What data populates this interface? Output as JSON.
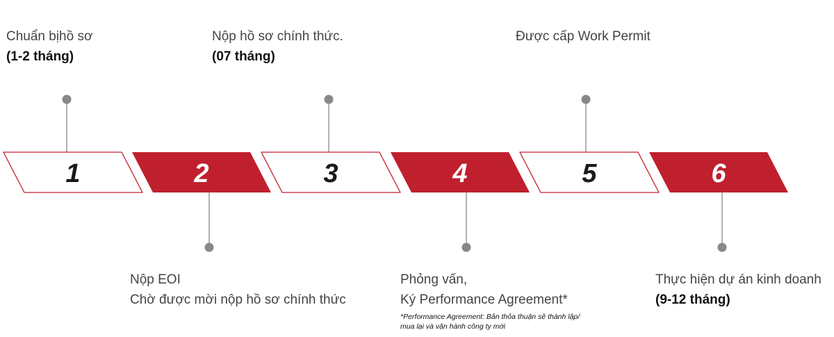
{
  "colors": {
    "accent": "#c0202e",
    "outline": "#c0202e",
    "connector": "#888888",
    "dark_number": "#1a1a1a",
    "white_number": "#ffffff"
  },
  "steps": [
    {
      "number": "1",
      "style": "outline",
      "label_position": "top",
      "label": [
        "Chuẩn bịhồ sơ"
      ],
      "duration": "(1-2 tháng)"
    },
    {
      "number": "2",
      "style": "filled",
      "label_position": "bottom",
      "label": [
        "Nộp EOI",
        "Chờ được mời nộp hồ sơ chính thức"
      ],
      "duration": ""
    },
    {
      "number": "3",
      "style": "outline",
      "label_position": "top",
      "label": [
        "Nộp hồ sơ chính thức."
      ],
      "duration": "(07 tháng)"
    },
    {
      "number": "4",
      "style": "filled",
      "label_position": "bottom",
      "label": [
        "Phỏng vấn,",
        "Ký Performance Agreement*"
      ],
      "duration": ""
    },
    {
      "number": "5",
      "style": "outline",
      "label_position": "top",
      "label": [
        "Được cấp Work Permit"
      ],
      "duration": ""
    },
    {
      "number": "6",
      "style": "filled",
      "label_position": "bottom",
      "label": [
        "Thực hiện dự án kinh doanh"
      ],
      "duration": "(9-12 tháng)"
    }
  ],
  "footnote": [
    "*Performance Agreement: Bản thỏa thuận sẽ thành lập/",
    "mua lại và vận hành công ty mới"
  ]
}
